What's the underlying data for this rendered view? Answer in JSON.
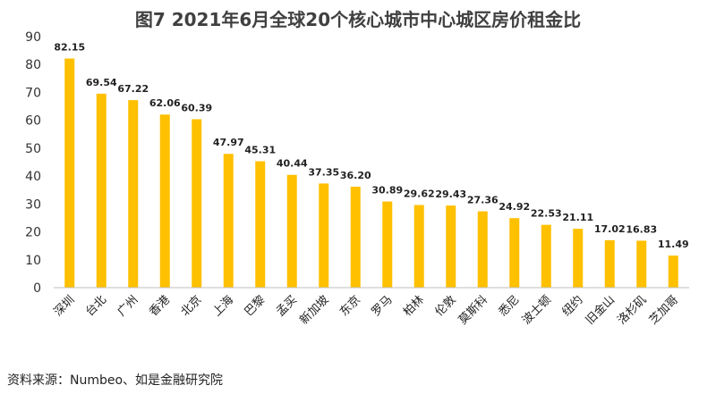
{
  "chart_data": {
    "type": "bar",
    "title": "图7  2021年6月全球20个核心城市中心城区房价租金比",
    "categories": [
      "深圳",
      "台北",
      "广州",
      "香港",
      "北京",
      "上海",
      "巴黎",
      "孟买",
      "新加坡",
      "东京",
      "罗马",
      "柏林",
      "伦敦",
      "莫斯科",
      "悉尼",
      "波士顿",
      "纽约",
      "旧金山",
      "洛杉矶",
      "芝加哥"
    ],
    "values": [
      82.15,
      69.54,
      67.22,
      62.06,
      60.39,
      47.97,
      45.31,
      40.44,
      37.35,
      36.2,
      30.89,
      29.62,
      29.43,
      27.36,
      24.92,
      22.53,
      21.11,
      17.02,
      16.83,
      11.49
    ],
    "value_labels": [
      "82.15",
      "69.54",
      "67.22",
      "62.06",
      "60.39",
      "47.97",
      "45.31",
      "40.44",
      "37.35",
      "36.20",
      "30.89",
      "29.62",
      "29.43",
      "27.36",
      "24.92",
      "22.53",
      "21.11",
      "17.02",
      "16.83",
      "11.49"
    ],
    "yticks": [
      "0",
      "10",
      "20",
      "30",
      "40",
      "50",
      "60",
      "70",
      "80",
      "90"
    ],
    "ylim": [
      0,
      90
    ],
    "xlabel": "",
    "ylabel": "",
    "grid": false,
    "bar_color": "#FFC000",
    "axis_color": "#BFBFBF"
  },
  "source": "资料来源：Numbeo、如是金融研究院"
}
